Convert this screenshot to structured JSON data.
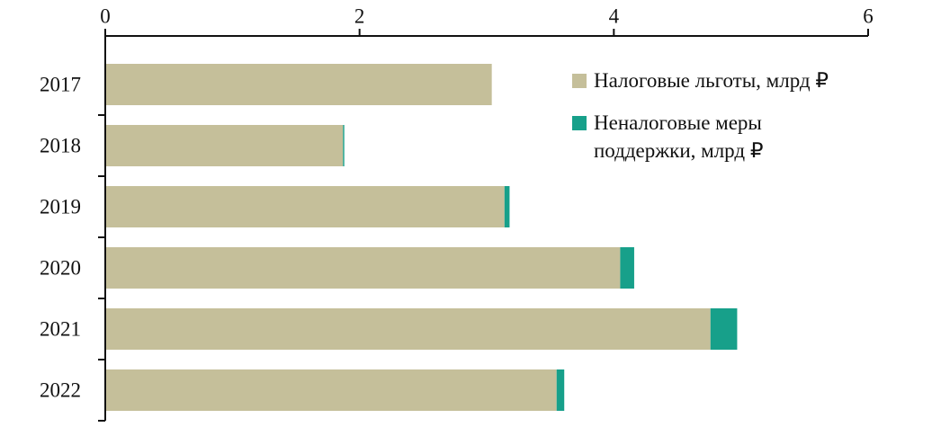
{
  "chart_data": {
    "type": "stacked-bar-horizontal",
    "categories": [
      "2017",
      "2018",
      "2019",
      "2020",
      "2021",
      "2022"
    ],
    "series": [
      {
        "name": "Налоговые льготы, млрд ₽",
        "color": "#c5bf9a",
        "values": [
          3.04,
          1.87,
          3.14,
          4.05,
          4.76,
          3.55
        ]
      },
      {
        "name": "Неналоговые меры поддержки, млрд ₽",
        "color": "#17a08a",
        "values": [
          0,
          0.01,
          0.04,
          0.11,
          0.21,
          0.06
        ]
      }
    ],
    "xlim": [
      0,
      6
    ],
    "xticks": [
      0,
      2,
      4,
      6
    ],
    "legend": "upper-right"
  }
}
